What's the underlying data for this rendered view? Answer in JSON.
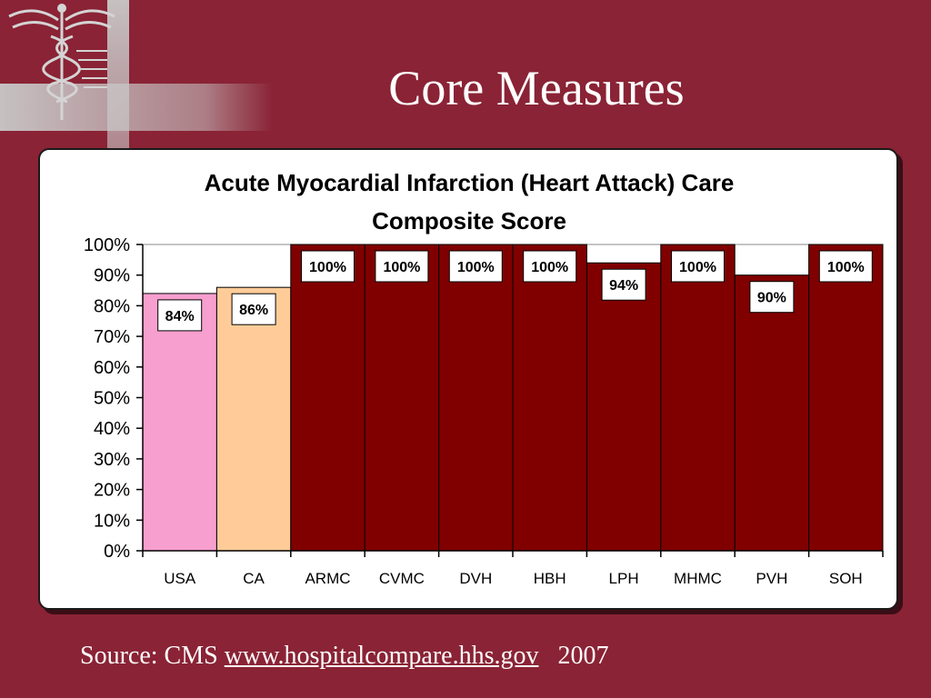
{
  "slide": {
    "title": "Core Measures",
    "source_prefix": "Source: CMS",
    "source_link": "www.hospitalcompare.hhs.gov",
    "source_year": "2007"
  },
  "colors": {
    "background": "#8a2335",
    "usa_bar": "#f79fce",
    "ca_bar": "#ffcc99",
    "hospital_bar": "#800000"
  },
  "chart_data": {
    "type": "bar",
    "title": "Acute Myocardial Infarction (Heart Attack) Care Composite Score",
    "title_lines": [
      "Acute Myocardial Infarction (Heart Attack) Care",
      "Composite Score"
    ],
    "categories": [
      "USA",
      "CA",
      "ARMC",
      "CVMC",
      "DVH",
      "HBH",
      "LPH",
      "MHMC",
      "PVH",
      "SOH"
    ],
    "values": [
      84,
      86,
      100,
      100,
      100,
      100,
      94,
      100,
      90,
      100
    ],
    "data_labels": [
      "84%",
      "86%",
      "100%",
      "100%",
      "100%",
      "100%",
      "94%",
      "100%",
      "90%",
      "100%"
    ],
    "bar_colors": [
      "#f79fce",
      "#ffcc99",
      "#800000",
      "#800000",
      "#800000",
      "#800000",
      "#800000",
      "#800000",
      "#800000",
      "#800000"
    ],
    "ylim": [
      0,
      100
    ],
    "yticks": [
      0,
      10,
      20,
      30,
      40,
      50,
      60,
      70,
      80,
      90,
      100
    ],
    "ytick_labels": [
      "0%",
      "10%",
      "20%",
      "30%",
      "40%",
      "50%",
      "60%",
      "70%",
      "80%",
      "90%",
      "100%"
    ],
    "xlabel": "",
    "ylabel": "",
    "grid": false,
    "legend": "none"
  }
}
